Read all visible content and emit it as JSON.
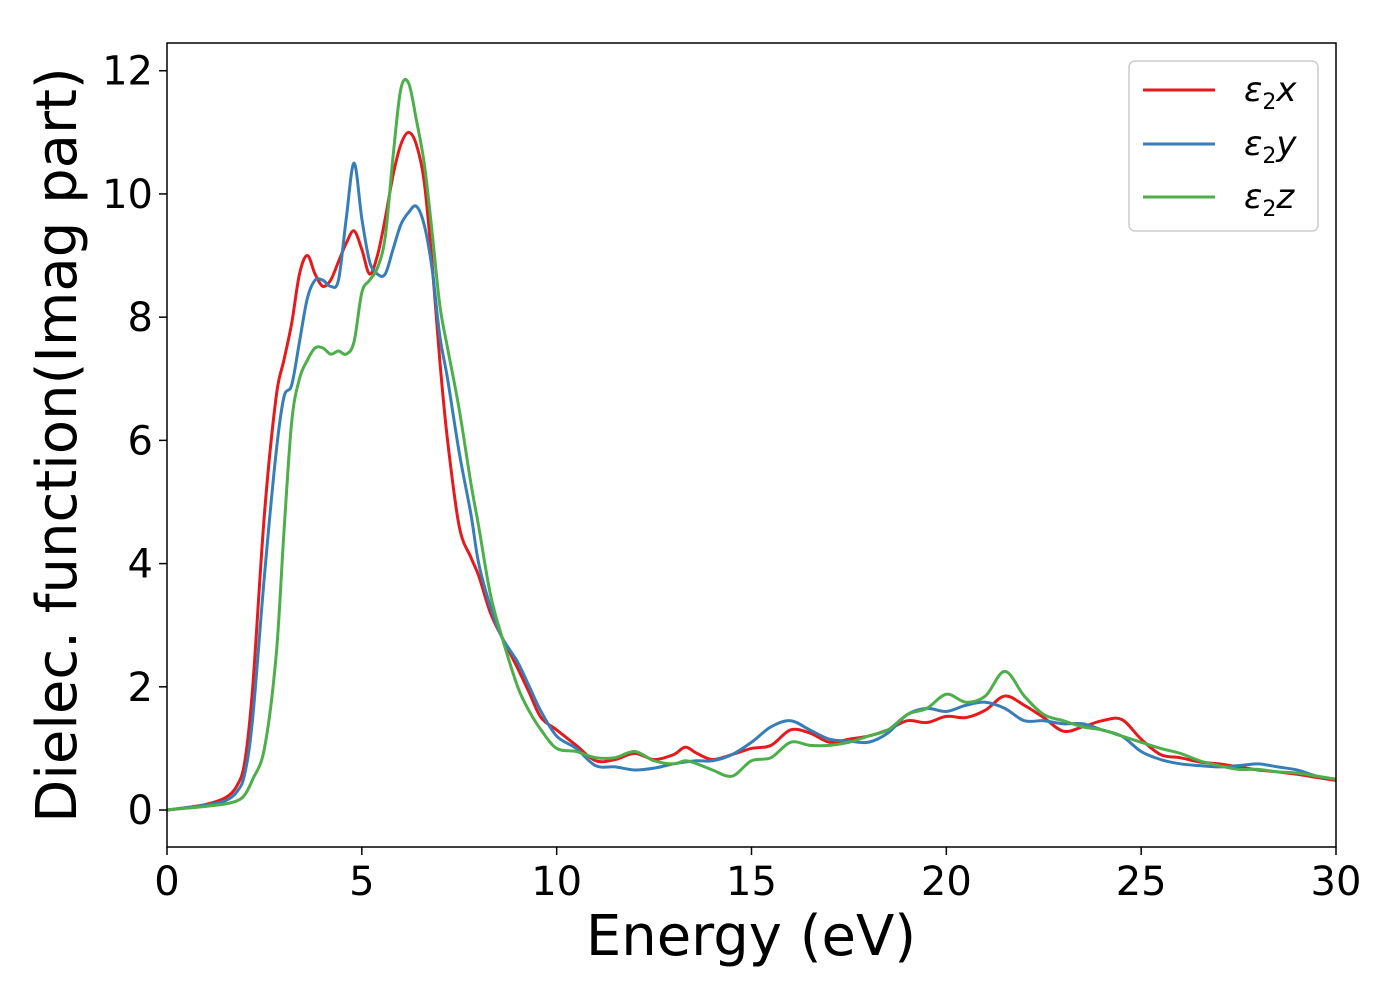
{
  "chart_data": {
    "type": "line",
    "xlabel": "Energy (eV)",
    "ylabel": "Dielec. function(Imag part)",
    "xlim": [
      0,
      30
    ],
    "ylim": [
      -0.6,
      12.45
    ],
    "xticks": [
      "0",
      "5",
      "10",
      "15",
      "20",
      "25",
      "30"
    ],
    "yticks": [
      "0",
      "2",
      "4",
      "6",
      "8",
      "10",
      "12"
    ],
    "grid": false,
    "legend_position": "top-right",
    "x": [
      0,
      0.5,
      1.0,
      1.5,
      1.8,
      2.0,
      2.2,
      2.5,
      2.8,
      3.0,
      3.2,
      3.4,
      3.6,
      3.8,
      4.0,
      4.2,
      4.4,
      4.6,
      4.8,
      5.0,
      5.2,
      5.4,
      5.6,
      5.8,
      6.0,
      6.2,
      6.4,
      6.6,
      6.8,
      7.0,
      7.2,
      7.5,
      7.8,
      8.0,
      8.3,
      8.6,
      9.0,
      9.3,
      9.6,
      10.0,
      10.5,
      11.0,
      11.5,
      12.0,
      12.5,
      13.0,
      13.3,
      13.6,
      14.0,
      14.5,
      15.0,
      15.5,
      16.0,
      16.5,
      17.0,
      17.5,
      18.0,
      18.5,
      19.0,
      19.5,
      20.0,
      20.5,
      21.0,
      21.5,
      22.0,
      22.5,
      23.0,
      23.5,
      24.0,
      24.5,
      25.0,
      25.5,
      26.0,
      26.5,
      27.0,
      27.5,
      28.0,
      28.5,
      29.0,
      29.5,
      30.0
    ],
    "series": [
      {
        "name": "x",
        "color": "#e41a1c",
        "values": [
          0.0,
          0.04,
          0.09,
          0.2,
          0.4,
          0.8,
          2.0,
          4.8,
          6.7,
          7.3,
          7.9,
          8.7,
          9.0,
          8.7,
          8.5,
          8.6,
          8.9,
          9.2,
          9.4,
          9.1,
          8.7,
          9.0,
          9.6,
          10.3,
          10.8,
          11.0,
          10.8,
          10.2,
          8.9,
          7.3,
          6.0,
          4.6,
          4.1,
          3.8,
          3.2,
          2.8,
          2.3,
          1.9,
          1.5,
          1.3,
          1.05,
          0.8,
          0.82,
          0.92,
          0.82,
          0.9,
          1.02,
          0.92,
          0.82,
          0.9,
          1.0,
          1.05,
          1.3,
          1.25,
          1.1,
          1.15,
          1.2,
          1.3,
          1.45,
          1.42,
          1.52,
          1.5,
          1.62,
          1.85,
          1.7,
          1.5,
          1.28,
          1.35,
          1.45,
          1.47,
          1.15,
          0.9,
          0.85,
          0.78,
          0.75,
          0.7,
          0.65,
          0.62,
          0.58,
          0.53,
          0.48
        ]
      },
      {
        "name": "y",
        "color": "#377eb8",
        "values": [
          0.0,
          0.04,
          0.08,
          0.15,
          0.3,
          0.6,
          1.5,
          3.8,
          5.8,
          6.7,
          6.9,
          7.6,
          8.3,
          8.6,
          8.6,
          8.5,
          8.6,
          9.6,
          10.5,
          9.6,
          8.9,
          8.7,
          8.7,
          9.1,
          9.5,
          9.7,
          9.8,
          9.5,
          8.8,
          7.7,
          7.0,
          5.8,
          4.8,
          4.0,
          3.3,
          2.8,
          2.4,
          2.0,
          1.6,
          1.2,
          1.0,
          0.72,
          0.7,
          0.65,
          0.68,
          0.75,
          0.78,
          0.8,
          0.8,
          0.9,
          1.1,
          1.35,
          1.45,
          1.3,
          1.15,
          1.12,
          1.1,
          1.25,
          1.55,
          1.65,
          1.6,
          1.7,
          1.75,
          1.65,
          1.45,
          1.45,
          1.4,
          1.4,
          1.3,
          1.2,
          0.95,
          0.82,
          0.75,
          0.72,
          0.7,
          0.72,
          0.75,
          0.7,
          0.65,
          0.55,
          0.5
        ]
      },
      {
        "name": "z",
        "color": "#4daf4a",
        "values": [
          0.0,
          0.03,
          0.06,
          0.1,
          0.15,
          0.25,
          0.5,
          1.0,
          2.5,
          4.5,
          6.3,
          7.0,
          7.3,
          7.5,
          7.5,
          7.4,
          7.45,
          7.4,
          7.6,
          8.4,
          8.6,
          8.8,
          9.3,
          10.6,
          11.7,
          11.8,
          11.2,
          10.5,
          9.4,
          8.2,
          7.5,
          6.5,
          5.3,
          4.6,
          3.5,
          2.8,
          2.0,
          1.6,
          1.3,
          1.0,
          0.95,
          0.85,
          0.85,
          0.95,
          0.8,
          0.75,
          0.8,
          0.75,
          0.65,
          0.55,
          0.8,
          0.85,
          1.1,
          1.05,
          1.05,
          1.1,
          1.2,
          1.3,
          1.55,
          1.65,
          1.88,
          1.75,
          1.85,
          2.25,
          1.85,
          1.55,
          1.45,
          1.35,
          1.3,
          1.2,
          1.1,
          1.0,
          0.92,
          0.8,
          0.72,
          0.66,
          0.66,
          0.62,
          0.6,
          0.55,
          0.5
        ]
      }
    ]
  }
}
